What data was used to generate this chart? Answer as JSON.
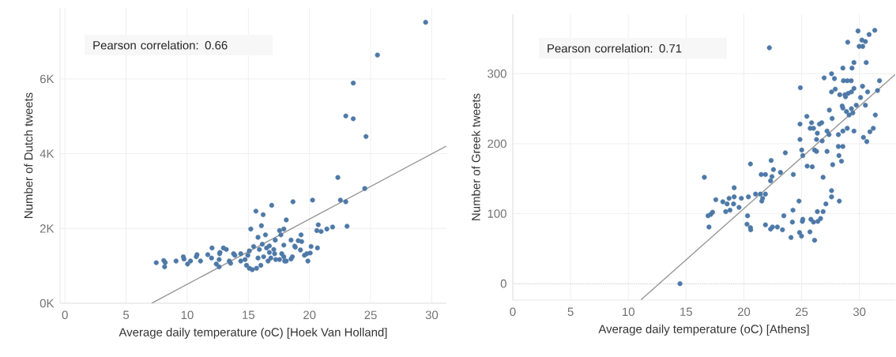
{
  "chart_data": [
    {
      "type": "scatter",
      "xlabel": "Average daily temperature (oC) [Hoek Van Holland]",
      "ylabel": "Number of Dutch tweets",
      "annotations": [
        "Pearson correlation: 0.66"
      ],
      "xlim": [
        -0.4,
        31.2
      ],
      "ylim": [
        0,
        7900
      ],
      "xticks": [
        0,
        5,
        10,
        15,
        20,
        25,
        30
      ],
      "yticks": [
        {
          "value": 0,
          "label": "0K"
        },
        {
          "value": 2000,
          "label": "2K"
        },
        {
          "value": 4000,
          "label": "4K"
        },
        {
          "value": 6000,
          "label": "6K"
        }
      ],
      "grid": true,
      "marker": "circle",
      "series": [
        {
          "color": "#4e79a7",
          "x": [
            29.5,
            25.56,
            23.58,
            22.97,
            23.58,
            24.62,
            22.32,
            24.52,
            22.53,
            22.97,
            23.07,
            21.89,
            21.42,
            20.72,
            20.6,
            20.95,
            20.25,
            18.65,
            16.91,
            15.62,
            16.21,
            18.1,
            15.2,
            16.07,
            17.9,
            17.55,
            17.66,
            16.4,
            15.79,
            19.31,
            18.49,
            19.08,
            19.36,
            17.2,
            16.72,
            16.14,
            17.9,
            20.13,
            20.65,
            18.84,
            19.26,
            19.78,
            19.59,
            20.06,
            19.87,
            18.49,
            17.97,
            17.9,
            17.73,
            17.15,
            17.08,
            16.49,
            15.9,
            15.43,
            15.08,
            14.96,
            14.73,
            14.85,
            15.08,
            15.32,
            15.67,
            16.02,
            16.61,
            16.84,
            17.24,
            17.55,
            16.72,
            16.25,
            15.79,
            14.38,
            14.38,
            13.79,
            13.9,
            13.44,
            13.55,
            13.2,
            12.96,
            12.65,
            12.68,
            12.61,
            12.38,
            12.61,
            12.03,
            11.68,
            11.99,
            11.09,
            10.8,
            10.74,
            10.27,
            10.03,
            9.68,
            9.74,
            9.09,
            8.2,
            8.15,
            8.08,
            7.47,
            18.1,
            18.6,
            18.79
          ],
          "values": [
            7515,
            6640,
            5890,
            5010,
            4935,
            4460,
            3365,
            3070,
            2760,
            2715,
            2060,
            2040,
            1985,
            2100,
            1945,
            1920,
            2760,
            2715,
            2620,
            2465,
            2370,
            2230,
            1985,
            2075,
            1985,
            1945,
            1830,
            1830,
            1765,
            1830,
            1690,
            1675,
            1650,
            1690,
            1535,
            1580,
            1555,
            1520,
            1480,
            1500,
            1425,
            1325,
            1285,
            1345,
            1130,
            1185,
            1130,
            1245,
            1325,
            1325,
            1440,
            1480,
            1440,
            1520,
            1400,
            1285,
            1170,
            1015,
            935,
            900,
            935,
            1015,
            1130,
            1210,
            1170,
            1170,
            1360,
            1245,
            1210,
            1325,
            1130,
            1325,
            1285,
            1130,
            1070,
            1440,
            1480,
            1325,
            1360,
            1170,
            1050,
            975,
            1480,
            1300,
            1210,
            1130,
            1300,
            1245,
            1130,
            1050,
            1245,
            1185,
            1130,
            1090,
            975,
            1145,
            1085,
            1130,
            1245,
            1530
          ]
        },
        {
          "type": "line",
          "marker": "none",
          "color": "#999999",
          "x": [
            7.09,
            31.17
          ],
          "values": [
            0,
            4200
          ]
        }
      ]
    },
    {
      "type": "scatter",
      "xlabel": "Average daily temperature (oC) [Athens]",
      "ylabel": "Number of Greek tweets",
      "annotations": [
        "Pearson correlation: 0.71"
      ],
      "xlim": [
        0,
        33.1
      ],
      "ylim": [
        -23.5,
        385
      ],
      "xticks": [
        0,
        5,
        10,
        15,
        20,
        25,
        30
      ],
      "yticks": [
        0,
        100,
        200,
        300
      ],
      "grid": true,
      "marker": "circle",
      "ref_lines": [
        {
          "axis": "y",
          "value": 0,
          "line_style": "dotted",
          "color": "#bbbbbb"
        }
      ],
      "series": [
        {
          "color": "#4e79a7",
          "x": [
            22.21,
            14.47,
            16.58,
            31.33,
            29.88,
            30.84,
            28.99,
            30.22,
            30.52,
            29.98,
            30.29,
            30.59,
            29.53,
            29.36,
            28.57,
            27.59,
            26.95,
            27.84,
            28.62,
            28.95,
            29.29,
            31.74,
            24.89,
            30.27,
            29.53,
            27.91,
            27.59,
            28.3,
            28.75,
            29.04,
            29.31,
            28.8,
            30.71,
            31.57,
            30.1,
            29.73,
            30.52,
            28.51,
            28.57,
            28.88,
            29.31,
            29.11,
            29.43,
            27.4,
            31.38,
            25.45,
            27.64,
            25.86,
            24.86,
            26.54,
            26.74,
            25.74,
            26.03,
            28.95,
            28.57,
            29.53,
            31.2,
            30.91,
            27.2,
            26.36,
            27.37,
            28.18,
            30.35,
            30.64,
            24.86,
            26.29,
            26.78,
            25.01,
            25.1,
            26.12,
            26.29,
            27.2,
            28.18,
            28.57,
            28.23,
            23.59,
            25.48,
            25.92,
            27.69,
            28.45,
            22.36,
            22.56,
            23.17,
            24.28,
            26.86,
            21.5,
            21.87,
            22.43,
            22.31,
            20.57,
            19.16,
            21.01,
            21.43,
            21.87,
            21.62,
            21.55,
            20.39,
            19.16,
            18.72,
            17.57,
            18.18,
            18.55,
            19.11,
            19.78,
            19.58,
            18.43,
            18.8,
            17.29,
            17.13,
            16.9,
            16.98,
            20.32,
            20.27,
            20.57,
            20.59,
            21.87,
            22.31,
            22.48,
            22.9,
            23.34,
            23.46,
            24.08,
            24.25,
            24.2,
            24.77,
            24.82,
            24.99,
            25.06,
            25.1,
            25.72,
            25.8,
            26.03,
            26.4,
            26.12,
            26.64,
            26.36,
            26.86,
            27.1,
            27.59,
            27.59,
            28.26
          ],
          "values": [
            337,
            0,
            152,
            362,
            361,
            356,
            345,
            348,
            346,
            339,
            339,
            316,
            316,
            308,
            308,
            300,
            294,
            293,
            290,
            290,
            290,
            290,
            280,
            282,
            279,
            278,
            274,
            270,
            270,
            272,
            274,
            267,
            274,
            276,
            266,
            255,
            255,
            254,
            251,
            246,
            250,
            241,
            244,
            248,
            241,
            239,
            236,
            230,
            228,
            228,
            230,
            222,
            222,
            222,
            218,
            218,
            222,
            217,
            218,
            215,
            213,
            213,
            209,
            203,
            206,
            206,
            204,
            191,
            183,
            191,
            189,
            189,
            196,
            196,
            183,
            187,
            168,
            167,
            170,
            175,
            176,
            163,
            159,
            156,
            152,
            156,
            156,
            153,
            147,
            171,
            137,
            128,
            128,
            128,
            122,
            118,
            124,
            124,
            122,
            120,
            117,
            114,
            114,
            122,
            109,
            103,
            105,
            102,
            99,
            97,
            81,
            97,
            85,
            80,
            77,
            84,
            78,
            81,
            81,
            77,
            97,
            66,
            105,
            88,
            118,
            73,
            68,
            89,
            92,
            74,
            92,
            88,
            89,
            62,
            93,
            103,
            103,
            114,
            124,
            133,
            118
          ]
        },
        {
          "type": "line",
          "marker": "none",
          "color": "#999999",
          "x": [
            11.1,
            33.1
          ],
          "values": [
            -23,
            299
          ]
        }
      ]
    }
  ]
}
